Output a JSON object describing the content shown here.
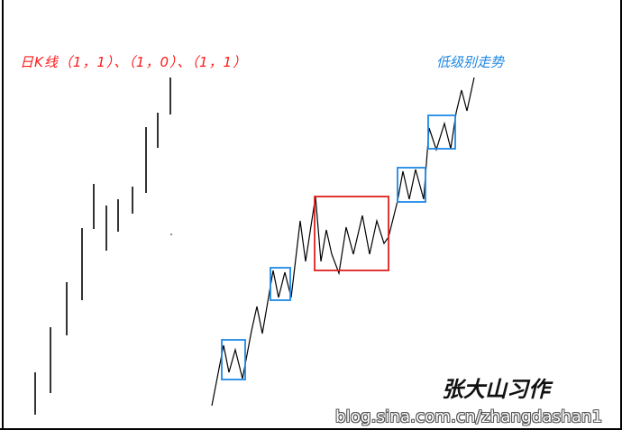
{
  "labels": {
    "title": "日K线（1，1）、（1，0）、（1，1）",
    "low_level": "低级别走势",
    "signature": "张大山习作",
    "watermark": "blog.sina.com.cn/zhangdashan1"
  },
  "colors": {
    "line": "#000000",
    "title": "#ff1a1a",
    "low_level_label": "#1e88e5",
    "blue_box": "#1e88e5",
    "red_box": "#e02020"
  }
}
